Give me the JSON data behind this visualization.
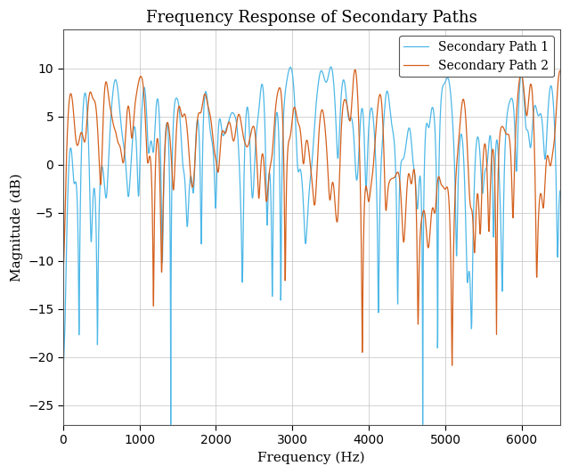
{
  "title": "Frequency Response of Secondary Paths",
  "xlabel": "Frequency (Hz)",
  "ylabel": "Magnitude (dB)",
  "xlim": [
    0,
    6500
  ],
  "ylim": [
    -27,
    14
  ],
  "color1": "#4db8e8",
  "color2": "#d4601c",
  "label1": "Secondary Path 1",
  "label2": "Secondary Path 2",
  "yticks": [
    -25,
    -20,
    -15,
    -10,
    -5,
    0,
    5,
    10
  ],
  "xticks": [
    0,
    1000,
    2000,
    3000,
    4000,
    5000,
    6000
  ],
  "linewidth": 0.9,
  "title_fontsize": 13,
  "label_fontsize": 11,
  "tick_fontsize": 10,
  "legend_fontsize": 10
}
